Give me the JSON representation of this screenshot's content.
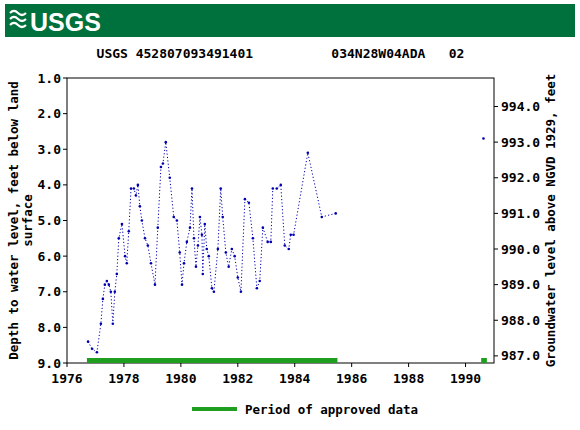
{
  "chart_data": {
    "type": "line",
    "logo": "USGS",
    "title": "USGS 452807093491401          034N28W04ADA   02",
    "ylabel": "Depth to water level, feet below land surface",
    "y2label": "Groundwater level above NGVD 1929, feet",
    "xlim": [
      1976,
      1991
    ],
    "xticks": [
      1976,
      1978,
      1980,
      1982,
      1984,
      1986,
      1988,
      1990
    ],
    "ylim": [
      1,
      9
    ],
    "yticks": [
      {
        "value": 1,
        "label": "1.0"
      },
      {
        "value": 2,
        "label": "2.0"
      },
      {
        "value": 3,
        "label": "3.0"
      },
      {
        "value": 4,
        "label": "4.0"
      },
      {
        "value": 5,
        "label": "5.0"
      },
      {
        "value": 6,
        "label": "6.0"
      },
      {
        "value": 7,
        "label": "7.0"
      },
      {
        "value": 8,
        "label": "8.0"
      },
      {
        "value": 9,
        "label": "9.0"
      }
    ],
    "y2lim": [
      994.8,
      986.8
    ],
    "y2ticks": [
      {
        "value": 994,
        "label": "994.0"
      },
      {
        "value": 993,
        "label": "993.0"
      },
      {
        "value": 992,
        "label": "992.0"
      },
      {
        "value": 991,
        "label": "991.0"
      },
      {
        "value": 990,
        "label": "990.0"
      },
      {
        "value": 989,
        "label": "989.0"
      },
      {
        "value": 988,
        "label": "988.0"
      },
      {
        "value": 987,
        "label": "987.0"
      }
    ],
    "grid": false,
    "legend": "bottom",
    "series": [
      {
        "color": "#0000b0",
        "marker": "point",
        "line_style": "dotted",
        "x": [
          1976.74,
          1976.88,
          1977.05,
          1977.19,
          1977.26,
          1977.33,
          1977.4,
          1977.47,
          1977.54,
          1977.61,
          1977.68,
          1977.75,
          1977.82,
          1977.93,
          1978.04,
          1978.1,
          1978.17,
          1978.25,
          1978.35,
          1978.42,
          1978.49,
          1978.56,
          1978.63,
          1978.74,
          1978.84,
          1978.95,
          1979.09,
          1979.19,
          1979.3,
          1979.37,
          1979.47,
          1979.61,
          1979.75,
          1979.86,
          1979.96,
          1980.04,
          1980.11,
          1980.21,
          1980.32,
          1980.39,
          1980.46,
          1980.53,
          1980.6,
          1980.67,
          1980.74,
          1980.77,
          1980.84,
          1980.91,
          1980.98,
          1981.09,
          1981.16,
          1981.3,
          1981.4,
          1981.47,
          1981.58,
          1981.68,
          1981.79,
          1981.89,
          1982.0,
          1982.11,
          1982.25,
          1982.39,
          1982.53,
          1982.67,
          1982.77,
          1982.88,
          1983.05,
          1983.16,
          1983.23,
          1983.37,
          1983.51,
          1983.65,
          1983.79,
          1983.86,
          1983.96,
          1984.46,
          1984.95,
          1985.44,
          1988.0,
          1990.63
        ],
        "values": [
          8.4,
          8.6,
          8.7,
          7.9,
          7.2,
          6.8,
          6.7,
          6.8,
          7.0,
          7.9,
          7.0,
          6.5,
          5.5,
          5.1,
          6.0,
          6.2,
          5.3,
          4.1,
          4.1,
          4.3,
          4.0,
          4.6,
          5.0,
          5.5,
          5.7,
          6.2,
          6.8,
          5.2,
          3.5,
          3.4,
          2.8,
          3.8,
          4.9,
          5.0,
          5.9,
          6.8,
          6.2,
          5.6,
          5.2,
          4.1,
          5.5,
          6.3,
          5.7,
          4.9,
          5.4,
          6.5,
          5.1,
          5.8,
          6.0,
          6.9,
          7.0,
          5.8,
          4.1,
          4.9,
          5.9,
          6.3,
          5.8,
          6.0,
          6.6,
          7.0,
          4.4,
          4.5,
          5.5,
          6.9,
          6.7,
          5.2,
          5.6,
          5.6,
          4.1,
          4.1,
          4.0,
          5.7,
          5.8,
          5.4,
          5.4,
          3.1,
          4.9,
          4.8,
          null,
          2.7
        ]
      }
    ],
    "approved_periods": {
      "name": "Period of approved data",
      "color": "#1f9e1f",
      "ranges": [
        [
          1976.7,
          1985.5
        ],
        [
          1990.55,
          1990.75
        ]
      ]
    }
  }
}
